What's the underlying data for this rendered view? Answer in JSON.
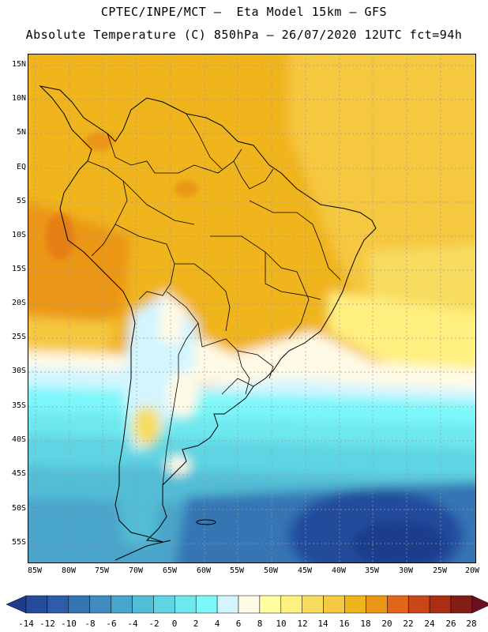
{
  "header": {
    "title_line1": "CPTEC/INPE/MCT –  Eta Model 15km – GFS",
    "title_line2": "Absolute Temperature (C) 850hPa – 26/07/2020 12UTC fct=94h"
  },
  "map": {
    "lat_labels": [
      "15N",
      "10N",
      "5N",
      "EQ",
      "5S",
      "10S",
      "15S",
      "20S",
      "25S",
      "30S",
      "35S",
      "40S",
      "45S",
      "50S",
      "55S"
    ],
    "lon_labels": [
      "85W",
      "80W",
      "75W",
      "70W",
      "65W",
      "60W",
      "55W",
      "50W",
      "45W",
      "40W",
      "35W",
      "30W",
      "25W",
      "20W"
    ]
  },
  "colorbar": {
    "labels": [
      "-14",
      "-12",
      "-10",
      "-8",
      "-6",
      "-4",
      "-2",
      "0",
      "2",
      "4",
      "6",
      "8",
      "10",
      "12",
      "14",
      "16",
      "18",
      "20",
      "22",
      "24",
      "26",
      "28"
    ],
    "colors": [
      "#1e3c8c",
      "#244b9c",
      "#2d5ca8",
      "#3675b4",
      "#3f8dc0",
      "#48a5cb",
      "#52bdd6",
      "#5fd4e2",
      "#6ee8ee",
      "#7cf7fa",
      "#d2f5ff",
      "#fffae6",
      "#ffffa0",
      "#fff080",
      "#f7dc60",
      "#f5c841",
      "#f0b41e",
      "#eb9616",
      "#e1661a",
      "#c8461a",
      "#aa2d14",
      "#821e14",
      "#6e0f1e"
    ]
  }
}
